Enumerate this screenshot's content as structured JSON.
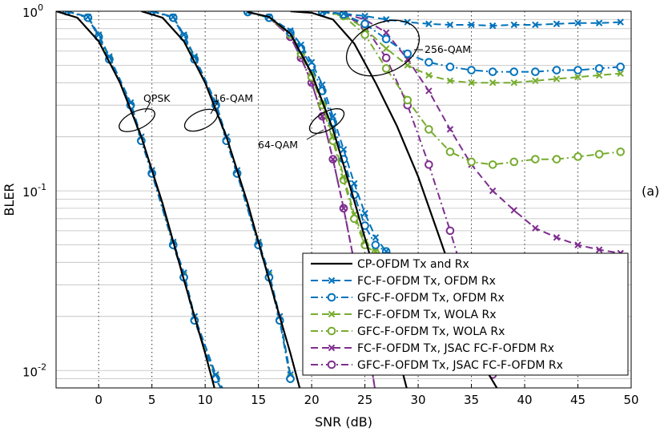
{
  "chart_data": {
    "type": "line",
    "title": "",
    "xlabel": "SNR (dB)",
    "ylabel": "BLER",
    "panel_label": "(a)",
    "xlim": [
      -4,
      50
    ],
    "ylim": [
      0.008,
      1
    ],
    "yscale": "log",
    "grid": true,
    "legend_position": "bottom-right",
    "x_ticks": [
      0,
      5,
      10,
      15,
      20,
      25,
      30,
      35,
      40,
      45,
      50
    ],
    "x_tick_labels": [
      "0",
      "5",
      "10",
      "15",
      "20",
      "25",
      "30",
      "35",
      "40",
      "45",
      "50"
    ],
    "y_ticks": [
      {
        "value": 1,
        "base": "10",
        "exp": "0"
      },
      {
        "value": 0.1,
        "base": "10",
        "exp": "-1"
      },
      {
        "value": 0.01,
        "base": "10",
        "exp": "-2"
      }
    ],
    "annotations": [
      {
        "text": "QPSK",
        "x": 3.5,
        "y": 0.29
      },
      {
        "text": "16-QAM",
        "x": 13.5,
        "y": 0.29
      },
      {
        "text": "64-QAM",
        "x": 18.5,
        "y": 0.165
      },
      {
        "text": "256-QAM",
        "x": 30.5,
        "y": 0.57
      }
    ],
    "series": [
      {
        "name": "CP-OFDM Tx and Rx",
        "color": "#000000",
        "dash": "solid",
        "marker": "none",
        "curves": [
          {
            "x": [
              -4,
              -2,
              0,
              2,
              4,
              6,
              8,
              10,
              12
            ],
            "y": [
              1,
              0.92,
              0.68,
              0.4,
              0.2,
              0.085,
              0.032,
              0.0125,
              0.0045
            ]
          },
          {
            "x": [
              4,
              6,
              8,
              10,
              12,
              14,
              16,
              18,
              19
            ],
            "y": [
              1,
              0.92,
              0.68,
              0.4,
              0.2,
              0.085,
              0.032,
              0.0125,
              0.0075
            ]
          },
          {
            "x": [
              14,
              16,
              18,
              20,
              22,
              24,
              26,
              28,
              30
            ],
            "y": [
              0.99,
              0.93,
              0.75,
              0.45,
              0.22,
              0.088,
              0.034,
              0.013,
              0.0045
            ]
          },
          {
            "x": [
              18,
              20,
              22,
              24,
              26,
              28,
              30,
              32,
              34,
              36,
              37.5
            ],
            "y": [
              1,
              0.98,
              0.9,
              0.66,
              0.4,
              0.23,
              0.12,
              0.055,
              0.025,
              0.011,
              0.0078
            ]
          }
        ]
      },
      {
        "name": "FC-F-OFDM Tx, OFDM Rx",
        "color": "#0072BD",
        "dash": "dash",
        "marker": "x",
        "curves": [
          {
            "x": [
              -3,
              -1,
              0,
              1,
              3,
              4,
              5,
              7,
              8,
              9,
              11,
              12
            ],
            "y": [
              1,
              0.93,
              0.74,
              0.56,
              0.31,
              0.2,
              0.13,
              0.052,
              0.035,
              0.02,
              0.0095,
              0.0072
            ]
          },
          {
            "x": [
              5,
              7,
              8,
              9,
              11,
              12,
              13,
              15,
              16,
              17,
              18
            ],
            "y": [
              1,
              0.93,
              0.74,
              0.56,
              0.31,
              0.2,
              0.13,
              0.052,
              0.035,
              0.02,
              0.0095
            ]
          },
          {
            "x": [
              14,
              16,
              18,
              19,
              20,
              21,
              22,
              23,
              24,
              25,
              26,
              27,
              28,
              29,
              30
            ],
            "y": [
              0.99,
              0.93,
              0.78,
              0.65,
              0.52,
              0.39,
              0.26,
              0.17,
              0.11,
              0.075,
              0.055,
              0.046,
              0.043,
              0.042,
              0.042
            ]
          },
          {
            "x": [
              21,
              23,
              25,
              27,
              29,
              31,
              33,
              35,
              37,
              39,
              41,
              43,
              45,
              47,
              49
            ],
            "y": [
              0.99,
              0.97,
              0.94,
              0.9,
              0.87,
              0.85,
              0.84,
              0.84,
              0.83,
              0.84,
              0.84,
              0.85,
              0.86,
              0.86,
              0.87
            ]
          }
        ]
      },
      {
        "name": "GFC-F-OFDM Tx, OFDM Rx",
        "color": "#0072BD",
        "dash": "dashdot",
        "marker": "o",
        "curves": [
          {
            "x": [
              -3,
              -1,
              0,
              1,
              3,
              4,
              5,
              7,
              8,
              9,
              11,
              12
            ],
            "y": [
              1,
              0.92,
              0.72,
              0.54,
              0.3,
              0.19,
              0.125,
              0.05,
              0.033,
              0.019,
              0.009,
              0.007
            ]
          },
          {
            "x": [
              5,
              7,
              8,
              9,
              11,
              12,
              13,
              15,
              16,
              17,
              18
            ],
            "y": [
              1,
              0.92,
              0.72,
              0.54,
              0.3,
              0.19,
              0.125,
              0.05,
              0.033,
              0.019,
              0.009
            ]
          },
          {
            "x": [
              14,
              16,
              18,
              19,
              20,
              21,
              22,
              23,
              24,
              25,
              26,
              27
            ],
            "y": [
              0.99,
              0.92,
              0.76,
              0.62,
              0.49,
              0.36,
              0.24,
              0.15,
              0.095,
              0.064,
              0.05,
              0.046
            ]
          },
          {
            "x": [
              21,
              23,
              25,
              27,
              29,
              31,
              33,
              35,
              37,
              39,
              41,
              43,
              45,
              47,
              49
            ],
            "y": [
              0.99,
              0.96,
              0.85,
              0.7,
              0.58,
              0.52,
              0.49,
              0.47,
              0.46,
              0.46,
              0.46,
              0.47,
              0.47,
              0.48,
              0.49
            ]
          }
        ]
      },
      {
        "name": "FC-F-OFDM Tx, WOLA Rx",
        "color": "#77AC30",
        "dash": "dash",
        "marker": "x",
        "curves": [
          {
            "x": [
              -3,
              -1,
              0,
              1,
              3,
              4,
              5,
              7,
              8,
              9,
              11,
              12
            ],
            "y": [
              1,
              0.93,
              0.73,
              0.55,
              0.3,
              0.2,
              0.13,
              0.051,
              0.034,
              0.02,
              0.0092,
              0.007
            ]
          },
          {
            "x": [
              5,
              7,
              8,
              9,
              11,
              12,
              13,
              15,
              16,
              17,
              18
            ],
            "y": [
              1,
              0.93,
              0.73,
              0.55,
              0.3,
              0.2,
              0.13,
              0.051,
              0.034,
              0.02,
              0.0092
            ]
          },
          {
            "x": [
              14,
              16,
              18,
              19,
              20,
              21,
              22,
              23,
              24,
              25,
              26
            ],
            "y": [
              0.99,
              0.92,
              0.75,
              0.6,
              0.45,
              0.31,
              0.2,
              0.12,
              0.074,
              0.052,
              0.046
            ]
          },
          {
            "x": [
              21,
              23,
              25,
              27,
              29,
              31,
              33,
              35,
              37,
              39,
              41,
              43,
              45,
              47,
              49
            ],
            "y": [
              0.99,
              0.95,
              0.8,
              0.62,
              0.5,
              0.44,
              0.41,
              0.4,
              0.4,
              0.4,
              0.41,
              0.42,
              0.43,
              0.44,
              0.45
            ]
          }
        ]
      },
      {
        "name": "GFC-F-OFDM Tx, WOLA Rx",
        "color": "#77AC30",
        "dash": "dashdot",
        "marker": "o",
        "curves": [
          {
            "x": [
              -3,
              -1,
              0,
              1,
              3,
              4,
              5,
              7,
              8,
              9,
              11,
              12
            ],
            "y": [
              1,
              0.92,
              0.72,
              0.54,
              0.3,
              0.19,
              0.125,
              0.05,
              0.033,
              0.019,
              0.009,
              0.007
            ]
          },
          {
            "x": [
              5,
              7,
              8,
              9,
              11,
              12,
              13,
              15,
              16,
              17,
              18
            ],
            "y": [
              1,
              0.92,
              0.72,
              0.54,
              0.3,
              0.19,
              0.125,
              0.05,
              0.033,
              0.019,
              0.009
            ]
          },
          {
            "x": [
              14,
              16,
              18,
              19,
              20,
              21,
              22,
              23,
              24,
              25,
              26
            ],
            "y": [
              0.99,
              0.92,
              0.74,
              0.58,
              0.43,
              0.3,
              0.19,
              0.115,
              0.07,
              0.05,
              0.045
            ]
          },
          {
            "x": [
              21,
              23,
              25,
              27,
              29,
              31,
              33,
              35,
              37,
              39,
              41,
              43,
              45,
              47,
              49
            ],
            "y": [
              0.99,
              0.94,
              0.74,
              0.48,
              0.32,
              0.22,
              0.165,
              0.145,
              0.14,
              0.145,
              0.15,
              0.15,
              0.155,
              0.16,
              0.165
            ]
          }
        ]
      },
      {
        "name": "FC-F-OFDM Tx, JSAC FC-F-OFDM Rx",
        "color": "#7E2F8E",
        "dash": "dash",
        "marker": "x",
        "curves": [
          {
            "x": [
              -3,
              -1,
              0,
              1,
              3,
              4,
              5,
              7,
              8,
              9,
              11,
              12
            ],
            "y": [
              1,
              0.93,
              0.73,
              0.55,
              0.3,
              0.2,
              0.13,
              0.051,
              0.034,
              0.02,
              0.0092,
              0.007
            ]
          },
          {
            "x": [
              5,
              7,
              8,
              9,
              11,
              12,
              13,
              15,
              16,
              17,
              18
            ],
            "y": [
              1,
              0.93,
              0.73,
              0.55,
              0.3,
              0.2,
              0.13,
              0.051,
              0.034,
              0.02,
              0.0092
            ]
          },
          {
            "x": [
              14,
              16,
              18,
              19,
              20,
              21,
              22,
              23,
              24,
              25,
              26
            ],
            "y": [
              0.99,
              0.92,
              0.72,
              0.55,
              0.4,
              0.26,
              0.15,
              0.08,
              0.04,
              0.018,
              0.0075
            ]
          },
          {
            "x": [
              21,
              23,
              25,
              27,
              29,
              31,
              33,
              35,
              37,
              39,
              41,
              43,
              45,
              47,
              49
            ],
            "y": [
              0.99,
              0.97,
              0.9,
              0.76,
              0.54,
              0.36,
              0.22,
              0.14,
              0.1,
              0.078,
              0.062,
              0.055,
              0.05,
              0.047,
              0.045
            ]
          }
        ]
      },
      {
        "name": "GFC-F-OFDM Tx, JSAC FC-F-OFDM Rx",
        "color": "#7E2F8E",
        "dash": "dashdot",
        "marker": "o",
        "curves": [
          {
            "x": [
              -3,
              -1,
              0,
              1,
              3,
              4,
              5,
              7,
              8,
              9,
              11,
              12
            ],
            "y": [
              1,
              0.92,
              0.72,
              0.54,
              0.3,
              0.19,
              0.125,
              0.05,
              0.033,
              0.019,
              0.009,
              0.007
            ]
          },
          {
            "x": [
              5,
              7,
              8,
              9,
              11,
              12,
              13,
              15,
              16,
              17,
              18
            ],
            "y": [
              1,
              0.92,
              0.72,
              0.54,
              0.3,
              0.19,
              0.125,
              0.05,
              0.033,
              0.019,
              0.009
            ]
          },
          {
            "x": [
              14,
              16,
              18,
              19,
              20,
              21,
              22,
              23,
              24,
              25,
              26
            ],
            "y": [
              0.99,
              0.92,
              0.72,
              0.55,
              0.4,
              0.26,
              0.15,
              0.08,
              0.04,
              0.018,
              0.0075
            ]
          },
          {
            "x": [
              21,
              23,
              25,
              27,
              29,
              31,
              33,
              35,
              37
            ],
            "y": [
              0.99,
              0.96,
              0.82,
              0.55,
              0.3,
              0.14,
              0.06,
              0.024,
              0.0095
            ]
          }
        ]
      }
    ]
  }
}
